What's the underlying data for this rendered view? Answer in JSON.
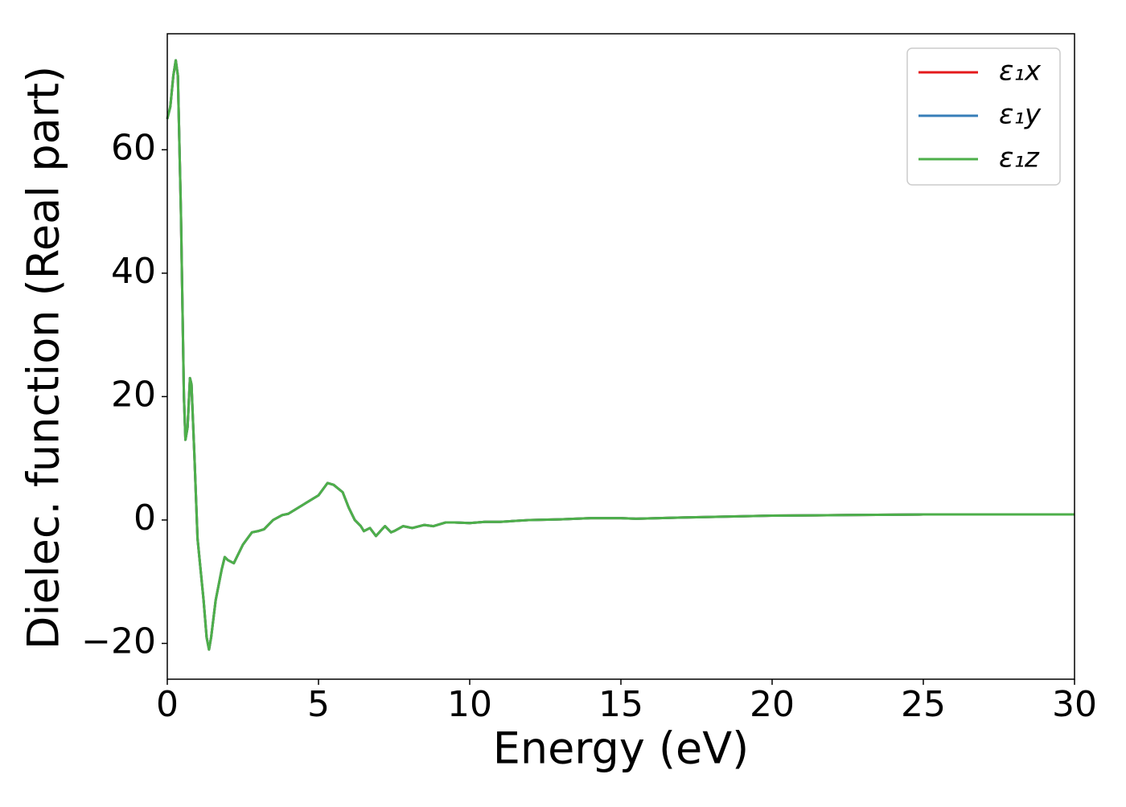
{
  "chart_data": {
    "type": "line",
    "xlabel": "Energy (eV)",
    "ylabel": "Dielec. function (Real part)",
    "x": [
      0,
      0.1,
      0.2,
      0.28,
      0.35,
      0.45,
      0.55,
      0.6,
      0.67,
      0.75,
      0.8,
      0.9,
      1.0,
      1.1,
      1.2,
      1.3,
      1.38,
      1.45,
      1.6,
      1.8,
      1.9,
      2.0,
      2.2,
      2.5,
      2.8,
      3.0,
      3.2,
      3.5,
      3.8,
      4.0,
      4.5,
      5.0,
      5.3,
      5.5,
      5.8,
      6.0,
      6.2,
      6.4,
      6.5,
      6.7,
      6.9,
      7.1,
      7.2,
      7.4,
      7.5,
      7.8,
      8.1,
      8.5,
      8.8,
      9.2,
      9.5,
      10,
      10.5,
      11,
      12,
      13,
      14,
      15,
      15.5,
      17,
      20,
      22.5,
      25,
      30
    ],
    "series": [
      {
        "name": "ε₁x",
        "color": "#e41a1c",
        "values": [
          65,
          67,
          72,
          74.5,
          72,
          50,
          20,
          13,
          15,
          23,
          22,
          10,
          -3,
          -8,
          -13,
          -19,
          -21,
          -19,
          -13,
          -8,
          -6,
          -6.5,
          -7,
          -4,
          -2,
          -1.8,
          -1.5,
          0,
          0.8,
          1,
          2.5,
          4,
          6,
          5.7,
          4.5,
          2,
          0,
          -1,
          -1.8,
          -1.3,
          -2.6,
          -1.5,
          -1,
          -2,
          -1.8,
          -1,
          -1.3,
          -0.8,
          -1,
          -0.4,
          -0.4,
          -0.5,
          -0.3,
          -0.3,
          0,
          0.1,
          0.3,
          0.3,
          0.2,
          0.4,
          0.7,
          0.8,
          0.9,
          0.9
        ]
      },
      {
        "name": "ε₁y",
        "color": "#377eb8",
        "values": [
          65,
          67,
          72,
          74.5,
          72,
          50,
          20,
          13,
          15,
          23,
          22,
          10,
          -3,
          -8,
          -13,
          -19,
          -21,
          -19,
          -13,
          -8,
          -6,
          -6.5,
          -7,
          -4,
          -2,
          -1.8,
          -1.5,
          0,
          0.8,
          1,
          2.5,
          4,
          6,
          5.7,
          4.5,
          2,
          0,
          -1,
          -1.8,
          -1.3,
          -2.6,
          -1.5,
          -1,
          -2,
          -1.8,
          -1,
          -1.3,
          -0.8,
          -1,
          -0.4,
          -0.4,
          -0.5,
          -0.3,
          -0.3,
          0,
          0.1,
          0.3,
          0.3,
          0.2,
          0.4,
          0.7,
          0.8,
          0.9,
          0.9
        ]
      },
      {
        "name": "ε₁z",
        "color": "#4daf4a",
        "values": [
          65,
          67,
          72,
          74.5,
          72,
          50,
          20,
          13,
          15,
          23,
          22,
          10,
          -3,
          -8,
          -13,
          -19,
          -21,
          -19,
          -13,
          -8,
          -6,
          -6.5,
          -7,
          -4,
          -2,
          -1.8,
          -1.5,
          0,
          0.8,
          1,
          2.5,
          4,
          6,
          5.7,
          4.5,
          2,
          0,
          -1,
          -1.8,
          -1.3,
          -2.6,
          -1.5,
          -1,
          -2,
          -1.8,
          -1,
          -1.3,
          -0.8,
          -1,
          -0.4,
          -0.4,
          -0.5,
          -0.3,
          -0.3,
          0,
          0.1,
          0.3,
          0.3,
          0.2,
          0.4,
          0.7,
          0.8,
          0.9,
          0.9
        ]
      }
    ],
    "xlim": [
      0,
      30
    ],
    "xticks": [
      0,
      5,
      10,
      15,
      20,
      25,
      30
    ],
    "ylim": [
      -25.8,
      78.8
    ],
    "yticks": [
      {
        "value": -20,
        "label": "−20"
      },
      0,
      20,
      40,
      60
    ],
    "grid": false,
    "legend": "upper right"
  }
}
